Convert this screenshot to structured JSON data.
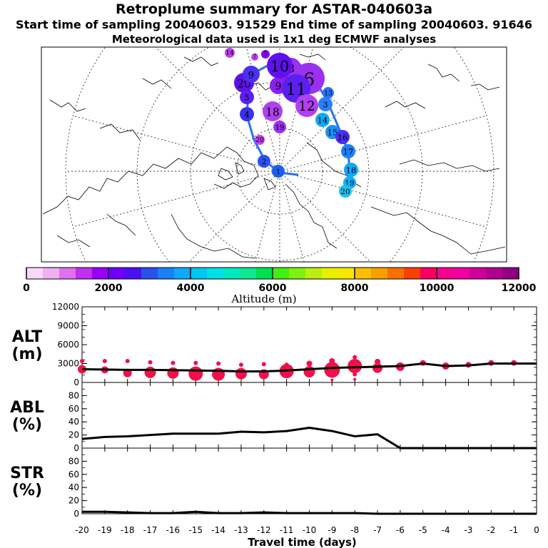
{
  "header": {
    "title": "Retroplume summary for ASTAR-040603a",
    "sampling_line": "Start time of sampling 20040603. 91529     End time of sampling 20040603. 91646",
    "met_line": "Meteorological data used is 1x1 deg ECMWF analyses"
  },
  "colorbar": {
    "label": "Altitude (m)",
    "tick_labels": [
      "0",
      "2000",
      "4000",
      "6000",
      "8000",
      "10000",
      "12000"
    ],
    "colors": [
      "#f8d8f8",
      "#f0b0f0",
      "#e070f0",
      "#c030f0",
      "#9a00f8",
      "#7000f8",
      "#4a10f0",
      "#2a50f0",
      "#1a80f8",
      "#10a8f8",
      "#00c8f0",
      "#00e0e8",
      "#00e8c0",
      "#10e890",
      "#00e050",
      "#40f010",
      "#80f010",
      "#b8f010",
      "#e8f000",
      "#f8e800",
      "#f8c000",
      "#f8a000",
      "#f87000",
      "#f84000",
      "#f80060",
      "#f80090",
      "#f000a0",
      "#d000a0",
      "#b00090",
      "#900080"
    ]
  },
  "map": {
    "numbered_markers": [
      {
        "n": "1",
        "color": "#1a60f0"
      },
      {
        "n": "2",
        "color": "#2a50f0"
      },
      {
        "n": "3",
        "color": "#2a80f8"
      },
      {
        "n": "4",
        "color": "#3a30f0"
      },
      {
        "n": "5",
        "color": "#8a00f8"
      },
      {
        "n": "6",
        "color": "#9a30f0"
      },
      {
        "n": "7",
        "color": "#c040f0"
      },
      {
        "n": "8",
        "color": "#9a30f0"
      },
      {
        "n": "9",
        "color": "#8a20f0"
      },
      {
        "n": "10",
        "color": "#6010f0"
      },
      {
        "n": "11",
        "color": "#5a20f0"
      },
      {
        "n": "12",
        "color": "#b040f0"
      },
      {
        "n": "13",
        "color": "#2a70f8"
      },
      {
        "n": "14",
        "color": "#10a8f8"
      },
      {
        "n": "15",
        "color": "#1a90f8"
      },
      {
        "n": "16",
        "color": "#4a30f0"
      },
      {
        "n": "17",
        "color": "#1a80f8"
      },
      {
        "n": "18",
        "color": "#10a8f8"
      },
      {
        "n": "19",
        "color": "#10b0f8"
      },
      {
        "n": "20",
        "color": "#20c0f0"
      }
    ]
  },
  "chart_data": [
    {
      "type": "line",
      "panel": "ALT",
      "ylabel_line1": "ALT",
      "ylabel_line2": "(m)",
      "ylim": [
        0,
        12000
      ],
      "yticks": [
        "0",
        "3000",
        "6000",
        "9000",
        "12000"
      ],
      "x": [
        -20,
        -19,
        -18,
        -17,
        -16,
        -15,
        -14,
        -13,
        -12,
        -11,
        -10,
        -9,
        -8,
        -7,
        -6,
        -5,
        -4,
        -3,
        -2,
        -1,
        0
      ],
      "series": [
        {
          "name": "mean altitude",
          "values": [
            2100,
            2050,
            2000,
            2000,
            1950,
            1900,
            1850,
            1750,
            1750,
            1900,
            2100,
            2300,
            2400,
            2500,
            2600,
            3000,
            2600,
            2700,
            3000,
            3000,
            3000
          ]
        }
      ],
      "bubbles": [
        {
          "x": -20,
          "y": 2100,
          "s": 6
        },
        {
          "x": -20,
          "y": 3400,
          "s": 3
        },
        {
          "x": -19,
          "y": 2000,
          "s": 5
        },
        {
          "x": -19,
          "y": 3400,
          "s": 3
        },
        {
          "x": -18,
          "y": 1500,
          "s": 6
        },
        {
          "x": -18,
          "y": 3400,
          "s": 3
        },
        {
          "x": -17,
          "y": 1600,
          "s": 8
        },
        {
          "x": -17,
          "y": 3200,
          "s": 3
        },
        {
          "x": -16,
          "y": 1500,
          "s": 8
        },
        {
          "x": -16,
          "y": 3100,
          "s": 3
        },
        {
          "x": -15,
          "y": 1400,
          "s": 10
        },
        {
          "x": -15,
          "y": 3100,
          "s": 3
        },
        {
          "x": -14,
          "y": 1300,
          "s": 9
        },
        {
          "x": -14,
          "y": 3000,
          "s": 3
        },
        {
          "x": -13,
          "y": 1400,
          "s": 8
        },
        {
          "x": -13,
          "y": 2800,
          "s": 3
        },
        {
          "x": -12,
          "y": 1300,
          "s": 7
        },
        {
          "x": -12,
          "y": 2900,
          "s": 3
        },
        {
          "x": -11,
          "y": 1800,
          "s": 10
        },
        {
          "x": -11,
          "y": 2800,
          "s": 3
        },
        {
          "x": -10,
          "y": 1700,
          "s": 8
        },
        {
          "x": -10,
          "y": 3000,
          "s": 4
        },
        {
          "x": -9,
          "y": 2000,
          "s": 11
        },
        {
          "x": -9,
          "y": 3400,
          "s": 4
        },
        {
          "x": -9,
          "y": 400,
          "s": 2
        },
        {
          "x": -8,
          "y": 2600,
          "s": 10
        },
        {
          "x": -8,
          "y": 4000,
          "s": 3
        },
        {
          "x": -8,
          "y": 1300,
          "s": 3
        },
        {
          "x": -8,
          "y": 500,
          "s": 2
        },
        {
          "x": -7,
          "y": 2300,
          "s": 7
        },
        {
          "x": -7,
          "y": 3300,
          "s": 4
        },
        {
          "x": -6,
          "y": 2500,
          "s": 6
        },
        {
          "x": -5,
          "y": 3100,
          "s": 4
        },
        {
          "x": -4,
          "y": 2600,
          "s": 5
        },
        {
          "x": -3,
          "y": 2800,
          "s": 4
        },
        {
          "x": -2,
          "y": 3100,
          "s": 4
        },
        {
          "x": -1,
          "y": 3100,
          "s": 4
        }
      ]
    },
    {
      "type": "line",
      "panel": "ABL",
      "ylabel_line1": "ABL",
      "ylabel_line2": "(%)",
      "ylim": [
        0,
        100
      ],
      "yticks": [
        "0",
        "20",
        "40",
        "60",
        "80"
      ],
      "x": [
        -20,
        -19,
        -18,
        -17,
        -16,
        -15,
        -14,
        -13,
        -12,
        -11,
        -10,
        -9,
        -8,
        -7,
        -6,
        -5,
        -4,
        -3,
        -2,
        -1,
        0
      ],
      "series": [
        {
          "name": "fraction in boundary layer",
          "values": [
            14,
            17,
            18,
            20,
            22,
            22,
            22,
            25,
            24,
            26,
            31,
            26,
            18,
            21,
            0,
            0,
            0,
            0,
            0,
            0,
            0
          ]
        }
      ]
    },
    {
      "type": "line",
      "panel": "STR",
      "ylabel_line1": "STR",
      "ylabel_line2": "(%)",
      "ylim": [
        0,
        100
      ],
      "yticks": [
        "0",
        "20",
        "40",
        "60",
        "80"
      ],
      "xlabel": "Travel time (days)",
      "xtick_labels": [
        "-20",
        "-19",
        "-18",
        "-17",
        "-16",
        "-15",
        "-14",
        "-13",
        "-12",
        "-11",
        "-10",
        "-9",
        "-8",
        "-7",
        "-6",
        "-5",
        "-4",
        "-3",
        "-2",
        "-1",
        "0"
      ],
      "x": [
        -20,
        -19,
        -18,
        -17,
        -16,
        -15,
        -14,
        -13,
        -12,
        -11,
        -10,
        -9,
        -8,
        -7,
        -6,
        -5,
        -4,
        -3,
        -2,
        -1,
        0
      ],
      "series": [
        {
          "name": "fraction in stratosphere",
          "values": [
            3,
            3,
            2,
            1,
            1,
            3,
            1,
            1,
            2,
            1,
            1,
            1,
            1,
            0,
            0,
            0,
            0,
            0,
            0,
            0,
            0
          ]
        }
      ]
    }
  ]
}
